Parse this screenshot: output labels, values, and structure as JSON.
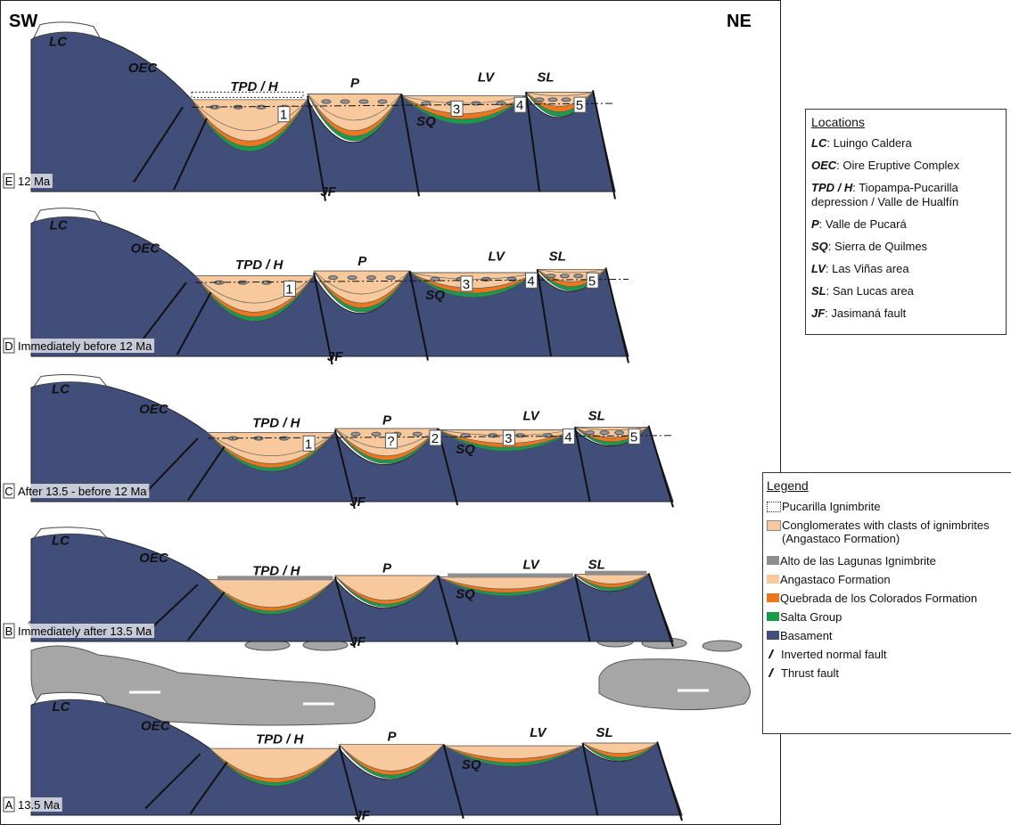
{
  "header": {
    "left": "SW",
    "right": "NE"
  },
  "panels": [
    {
      "letter": "E",
      "caption": "12 Ma",
      "labels": [
        "LC",
        "OEC",
        "TPD / H",
        "P",
        "SQ",
        "LV",
        "SL",
        "JF",
        "1",
        "3",
        "4",
        "5"
      ]
    },
    {
      "letter": "D",
      "caption": "Immediately before 12 Ma",
      "labels": [
        "LC",
        "OEC",
        "TPD / H",
        "P",
        "SQ",
        "LV",
        "SL",
        "JF",
        "1",
        "3",
        "4",
        "5"
      ]
    },
    {
      "letter": "C",
      "caption": "After 13.5 - before 12 Ma",
      "labels": [
        "LC",
        "OEC",
        "TPD / H",
        "P",
        "SQ",
        "LV",
        "SL",
        "JF",
        "1",
        "?",
        "2",
        "3",
        "4",
        "5"
      ]
    },
    {
      "letter": "B",
      "caption": "Immediately after 13.5 Ma",
      "labels": [
        "LC",
        "OEC",
        "TPD / H",
        "P",
        "SQ",
        "LV",
        "SL",
        "JF"
      ]
    },
    {
      "letter": "A",
      "caption": "13.5 Ma",
      "labels": [
        "LC",
        "OEC",
        "TPD / H",
        "P",
        "SQ",
        "LV",
        "SL",
        "JF"
      ]
    }
  ],
  "locations": {
    "title": "Locations",
    "items": [
      {
        "abbr": "LC",
        "text": ": Luingo Caldera"
      },
      {
        "abbr": "OEC",
        "text": ": Oire Eruptive Complex"
      },
      {
        "abbr": "TPD / H",
        "text": ": Tiopampa-Pucarilla depression / Valle de Hualfín"
      },
      {
        "abbr": "P",
        "text": ": Valle de Pucará"
      },
      {
        "abbr": "SQ",
        "text": ": Sierra de Quilmes"
      },
      {
        "abbr": "LV",
        "text": ": Las Viñas area"
      },
      {
        "abbr": "SL",
        "text": ": San Lucas area"
      },
      {
        "abbr": "JF",
        "text": ": Jasimaná fault"
      }
    ]
  },
  "legend": {
    "title": "Legend",
    "items": [
      "Pucarilla Ignimbrite",
      "Conglomerates with clasts of ignimbrites (Angastaco Formation)",
      "Alto de las Lagunas Ignimbrite",
      "Angastaco Formation",
      "Quebrada de los Colorados Formation",
      "Salta Group",
      "Basament",
      "Inverted normal fault",
      "Thrust fault"
    ]
  }
}
